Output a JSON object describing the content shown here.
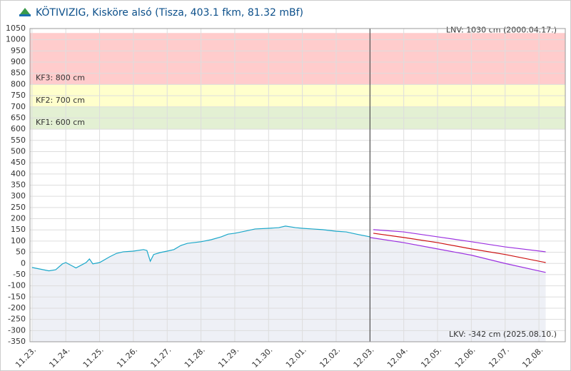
{
  "chart_data": {
    "type": "line",
    "title": "KÖTIVIZIG, Kisköre alsó (Tisza, 403.1 fkm, 81.32 mBf)",
    "annotations": [
      "LNV: 1030 cm (2000.04.17.)",
      "LKV: -342 cm (2025.08.10.)"
    ],
    "bands": [
      {
        "from": 800,
        "to": 1030,
        "color": "#ffcccc",
        "label": "KF3: 800 cm"
      },
      {
        "from": 700,
        "to": 800,
        "color": "#ffffcc",
        "label": "KF2: 700 cm"
      },
      {
        "from": 600,
        "to": 700,
        "color": "#e3f0d3",
        "label": "KF1: 600 cm"
      }
    ],
    "now_x": 10,
    "xlim": [
      -0.06,
      15.78
    ],
    "xticks": [
      {
        "value": 0,
        "label": "11.23."
      },
      {
        "value": 1,
        "label": "11.24."
      },
      {
        "value": 2,
        "label": "11.25."
      },
      {
        "value": 3,
        "label": "11.26."
      },
      {
        "value": 4,
        "label": "11.27."
      },
      {
        "value": 5,
        "label": "11.28."
      },
      {
        "value": 6,
        "label": "11.29."
      },
      {
        "value": 7,
        "label": "11.30."
      },
      {
        "value": 8,
        "label": "12.01."
      },
      {
        "value": 9,
        "label": "12.02."
      },
      {
        "value": 10,
        "label": "12.03."
      },
      {
        "value": 11,
        "label": "12.04."
      },
      {
        "value": 12,
        "label": "12.05."
      },
      {
        "value": 13,
        "label": "12.06."
      },
      {
        "value": 14,
        "label": "12.07."
      },
      {
        "value": 15,
        "label": "12.08."
      }
    ],
    "ylim": [
      -350,
      1050
    ],
    "yticks": [
      -350,
      -300,
      -250,
      -200,
      -150,
      -100,
      -50,
      0,
      50,
      100,
      150,
      200,
      250,
      300,
      350,
      400,
      450,
      500,
      550,
      600,
      650,
      700,
      750,
      800,
      850,
      900,
      950,
      1000,
      1050
    ],
    "grid": true,
    "series": [
      {
        "color": "#1aa7c9",
        "fill": "#eef0f6",
        "x": [
          0,
          0.5,
          0.7,
          0.9,
          1.0,
          1.2,
          1.3,
          1.6,
          1.7,
          1.8,
          2.0,
          2.3,
          2.5,
          2.7,
          3.0,
          3.3,
          3.4,
          3.5,
          3.6,
          3.8,
          4.0,
          4.2,
          4.4,
          4.6,
          5.0,
          5.3,
          5.6,
          5.8,
          6.0,
          6.3,
          6.6,
          7.0,
          7.3,
          7.5,
          7.8,
          8.0,
          8.3,
          8.6,
          9.0,
          9.3,
          9.6,
          10.0
        ],
        "values": [
          -18,
          -33,
          -28,
          -2,
          4,
          -12,
          -20,
          4,
          20,
          -2,
          4,
          30,
          45,
          52,
          55,
          62,
          58,
          10,
          40,
          49,
          55,
          62,
          80,
          90,
          97,
          106,
          119,
          131,
          135,
          144,
          154,
          157,
          160,
          167,
          160,
          157,
          154,
          151,
          144,
          141,
          131,
          119
        ]
      },
      {
        "color": "#9b30e0",
        "x": [
          10.1,
          11,
          12,
          13,
          14,
          15.2
        ],
        "values": [
          151,
          141,
          119,
          97,
          74,
          52
        ]
      },
      {
        "color": "#cc1111",
        "x": [
          10.1,
          11,
          12,
          13,
          14,
          15.2
        ],
        "values": [
          135,
          116,
          93,
          65,
          40,
          4
        ]
      },
      {
        "color": "#9b30e0",
        "fill": "#eef0f6",
        "x": [
          10,
          11,
          12,
          13,
          14,
          15.2
        ],
        "values": [
          116,
          93,
          65,
          37,
          0,
          -40
        ]
      }
    ]
  }
}
